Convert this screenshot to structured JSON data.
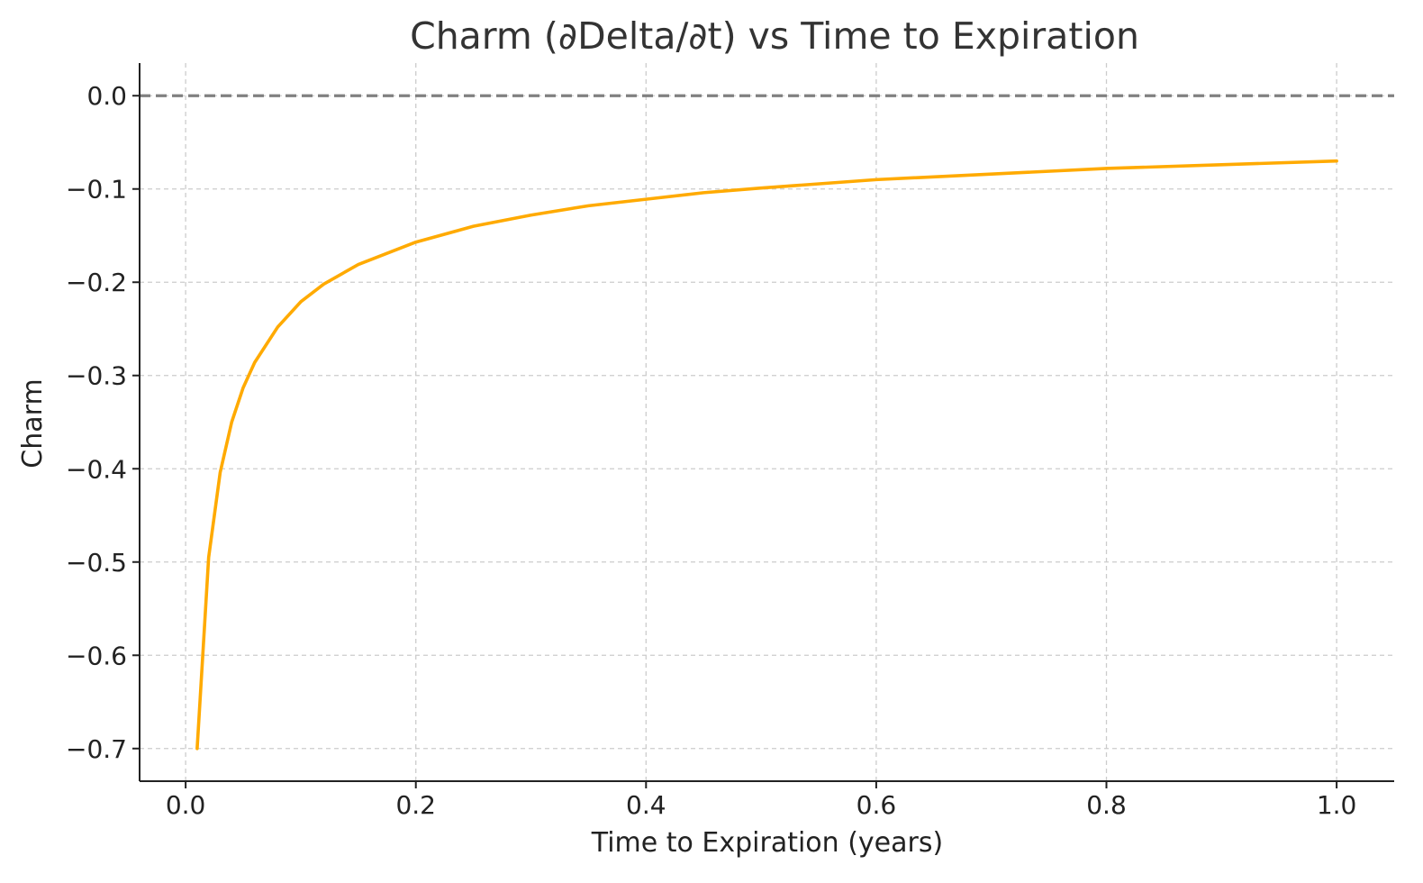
{
  "chart_data": {
    "type": "line",
    "title": "Charm (∂Delta/∂t) vs Time to Expiration",
    "xlabel": "Time to Expiration (years)",
    "ylabel": "Charm",
    "xlim": [
      -0.04,
      1.05
    ],
    "ylim": [
      -0.735,
      0.035
    ],
    "grid": true,
    "x_ticks": [
      0.0,
      0.2,
      0.4,
      0.6,
      0.8,
      1.0
    ],
    "x_tick_labels": [
      "0.0",
      "0.2",
      "0.4",
      "0.6",
      "0.8",
      "1.0"
    ],
    "y_ticks": [
      0.0,
      -0.1,
      -0.2,
      -0.3,
      -0.4,
      -0.5,
      -0.6,
      -0.7
    ],
    "y_tick_labels": [
      "0.0",
      "−0.1",
      "−0.2",
      "−0.3",
      "−0.4",
      "−0.5",
      "−0.6",
      "−0.7"
    ],
    "reference_line": {
      "y": 0.0,
      "style": "dashed",
      "color": "#808080"
    },
    "series": [
      {
        "color": "#ffaa00",
        "x": [
          0.01,
          0.02,
          0.03,
          0.04,
          0.05,
          0.06,
          0.08,
          0.1,
          0.12,
          0.15,
          0.2,
          0.25,
          0.3,
          0.35,
          0.4,
          0.45,
          0.5,
          0.6,
          0.7,
          0.8,
          0.9,
          1.0
        ],
        "y": [
          -0.7,
          -0.495,
          -0.404,
          -0.35,
          -0.313,
          -0.286,
          -0.248,
          -0.221,
          -0.202,
          -0.181,
          -0.157,
          -0.14,
          -0.128,
          -0.118,
          -0.111,
          -0.104,
          -0.099,
          -0.09,
          -0.084,
          -0.078,
          -0.074,
          -0.07
        ]
      }
    ]
  }
}
